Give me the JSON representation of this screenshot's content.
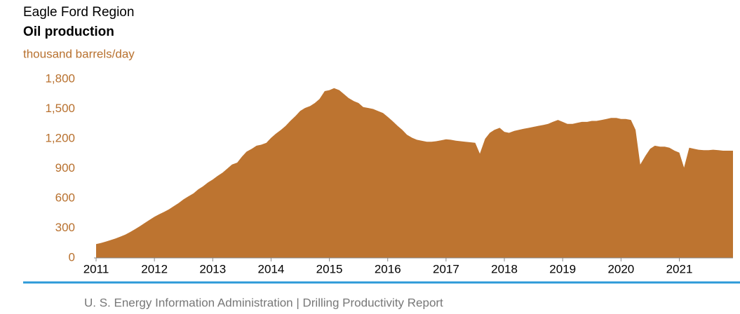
{
  "chart_data": {
    "type": "area",
    "title": "Eagle Ford Region",
    "subtitle": "Oil production",
    "y_label": "thousand barrels/day",
    "source": "U. S. Energy Information Administration  |  Drilling Productivity Report",
    "color": "#bd7430",
    "grid": false,
    "xlim": [
      2011,
      2021.92
    ],
    "xticks": [
      2011,
      2012,
      2013,
      2014,
      2015,
      2016,
      2017,
      2018,
      2019,
      2020,
      2021
    ],
    "ylim": [
      0,
      1800
    ],
    "yticks": [
      0,
      {
        "value": 300,
        "label": "300"
      },
      {
        "value": 600,
        "label": "600"
      },
      {
        "value": 900,
        "label": "900"
      },
      {
        "value": 1200,
        "label": "1,200"
      },
      {
        "value": 1500,
        "label": "1,500"
      },
      {
        "value": 1800,
        "label": "1,800"
      }
    ],
    "x": [
      2011,
      2011.08,
      2011.17,
      2011.25,
      2011.33,
      2011.42,
      2011.5,
      2011.58,
      2011.67,
      2011.75,
      2011.83,
      2011.92,
      2012,
      2012.08,
      2012.17,
      2012.25,
      2012.33,
      2012.42,
      2012.5,
      2012.58,
      2012.67,
      2012.75,
      2012.83,
      2012.92,
      2013,
      2013.08,
      2013.17,
      2013.25,
      2013.33,
      2013.42,
      2013.5,
      2013.58,
      2013.67,
      2013.75,
      2013.83,
      2013.92,
      2014,
      2014.08,
      2014.17,
      2014.25,
      2014.33,
      2014.42,
      2014.5,
      2014.58,
      2014.67,
      2014.75,
      2014.83,
      2014.92,
      2015,
      2015.08,
      2015.17,
      2015.25,
      2015.33,
      2015.42,
      2015.5,
      2015.58,
      2015.67,
      2015.75,
      2015.83,
      2015.92,
      2016,
      2016.08,
      2016.17,
      2016.25,
      2016.33,
      2016.42,
      2016.5,
      2016.58,
      2016.67,
      2016.75,
      2016.83,
      2016.92,
      2017,
      2017.08,
      2017.17,
      2017.25,
      2017.33,
      2017.42,
      2017.5,
      2017.58,
      2017.67,
      2017.75,
      2017.83,
      2017.92,
      2018,
      2018.08,
      2018.17,
      2018.25,
      2018.33,
      2018.42,
      2018.5,
      2018.58,
      2018.67,
      2018.75,
      2018.83,
      2018.92,
      2019,
      2019.08,
      2019.17,
      2019.25,
      2019.33,
      2019.42,
      2019.5,
      2019.58,
      2019.67,
      2019.75,
      2019.83,
      2019.92,
      2020,
      2020.08,
      2020.17,
      2020.25,
      2020.33,
      2020.42,
      2020.5,
      2020.58,
      2020.67,
      2020.75,
      2020.83,
      2020.92,
      2021,
      2021.08,
      2021.17,
      2021.25,
      2021.33,
      2021.42,
      2021.5,
      2021.58,
      2021.67,
      2021.75,
      2021.83,
      2021.92
    ],
    "values": [
      140,
      150,
      165,
      180,
      195,
      215,
      235,
      260,
      290,
      320,
      350,
      385,
      415,
      440,
      465,
      490,
      520,
      555,
      590,
      620,
      650,
      690,
      720,
      760,
      790,
      825,
      860,
      900,
      940,
      960,
      1020,
      1070,
      1100,
      1130,
      1140,
      1160,
      1210,
      1250,
      1290,
      1330,
      1380,
      1430,
      1480,
      1510,
      1530,
      1560,
      1600,
      1680,
      1690,
      1710,
      1690,
      1650,
      1610,
      1580,
      1560,
      1520,
      1510,
      1500,
      1480,
      1460,
      1420,
      1380,
      1330,
      1290,
      1240,
      1210,
      1190,
      1180,
      1170,
      1170,
      1175,
      1185,
      1195,
      1190,
      1180,
      1175,
      1170,
      1165,
      1160,
      1050,
      1200,
      1260,
      1290,
      1310,
      1270,
      1260,
      1280,
      1290,
      1300,
      1310,
      1320,
      1330,
      1340,
      1350,
      1370,
      1390,
      1370,
      1350,
      1350,
      1360,
      1370,
      1370,
      1380,
      1380,
      1390,
      1400,
      1410,
      1410,
      1400,
      1400,
      1390,
      1290,
      940,
      1030,
      1100,
      1130,
      1120,
      1120,
      1110,
      1080,
      1060,
      910,
      1110,
      1100,
      1090,
      1085,
      1085,
      1090,
      1085,
      1080,
      1080,
      1080
    ]
  }
}
